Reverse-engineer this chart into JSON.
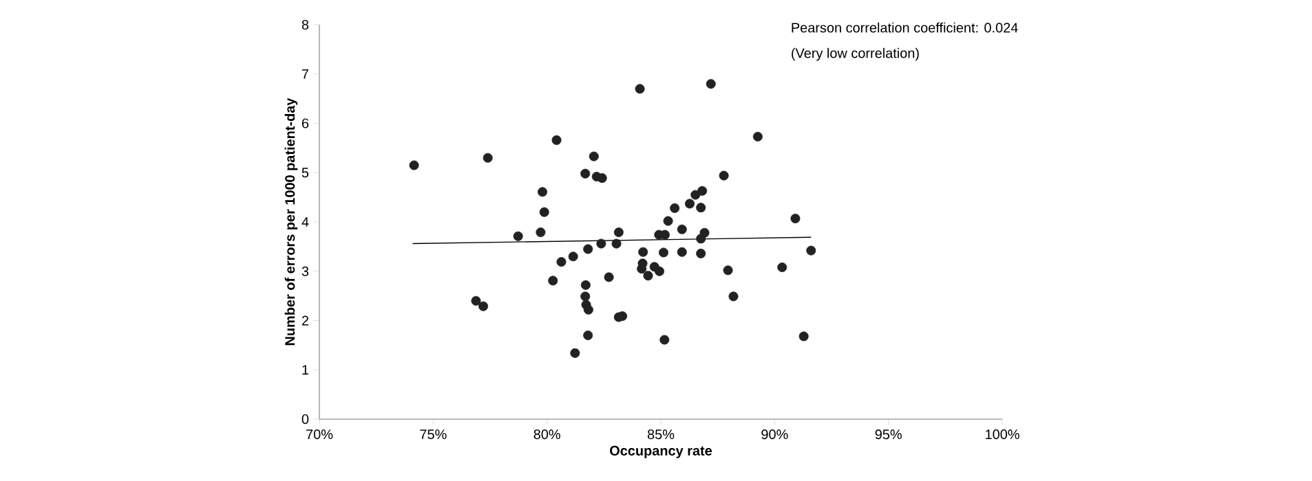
{
  "chart_data": {
    "type": "scatter",
    "xlabel": "Occupancy rate",
    "ylabel": "Number of errors per 1000 patient-day",
    "xlim": [
      70,
      100
    ],
    "ylim": [
      0,
      8
    ],
    "xticks": [
      {
        "value": 70,
        "label": "70%"
      },
      {
        "value": 75,
        "label": "75%"
      },
      {
        "value": 80,
        "label": "80%"
      },
      {
        "value": 85,
        "label": "85%"
      },
      {
        "value": 90,
        "label": "90%"
      },
      {
        "value": 95,
        "label": "95%"
      },
      {
        "value": 100,
        "label": "100%"
      }
    ],
    "yticks": [
      0,
      1,
      2,
      3,
      4,
      5,
      6,
      7,
      8
    ],
    "annotations": [
      "Pearson correlation coefficient: 0.024",
      "(Very low correlation)"
    ],
    "series": [
      {
        "color": "#222222",
        "marker": "circle",
        "x": [
          74.16,
          77.4,
          76.88,
          77.2,
          78.73,
          79.8,
          79.88,
          79.72,
          80.42,
          84.08,
          87.2,
          82.06,
          81.68,
          82.18,
          82.42,
          89.26,
          87.77,
          86.82,
          86.52,
          86.27,
          86.76,
          85.61,
          85.32,
          85.93,
          84.92,
          85.18,
          86.92,
          86.76,
          83.15,
          83.05,
          82.38,
          81.8,
          81.15,
          80.63,
          80.26,
          82.72,
          84.22,
          85.12,
          85.93,
          86.76,
          84.2,
          84.16,
          84.72,
          84.94,
          84.44,
          87.95,
          88.19,
          90.33,
          90.91,
          91.6,
          91.28,
          81.7,
          81.68,
          81.72,
          81.82,
          83.15,
          83.31,
          81.8,
          81.23,
          85.16
        ],
        "values": [
          5.15,
          5.3,
          2.4,
          2.29,
          3.71,
          4.61,
          4.2,
          3.79,
          5.66,
          6.7,
          6.8,
          5.33,
          4.98,
          4.92,
          4.89,
          5.73,
          4.94,
          4.63,
          4.55,
          4.37,
          4.29,
          4.28,
          4.02,
          3.85,
          3.74,
          3.74,
          3.78,
          3.66,
          3.79,
          3.56,
          3.56,
          3.45,
          3.3,
          3.19,
          2.81,
          2.88,
          3.39,
          3.38,
          3.39,
          3.36,
          3.16,
          3.05,
          3.09,
          3.0,
          2.91,
          3.02,
          2.49,
          3.08,
          4.07,
          3.42,
          1.68,
          2.72,
          2.49,
          2.32,
          2.22,
          2.07,
          2.09,
          1.7,
          1.34,
          1.61
        ]
      },
      {
        "type": "line",
        "color": "#000000",
        "marker": "none",
        "line_style": "solid",
        "x": [
          74.1,
          91.6
        ],
        "values": [
          3.56,
          3.69
        ]
      }
    ]
  }
}
